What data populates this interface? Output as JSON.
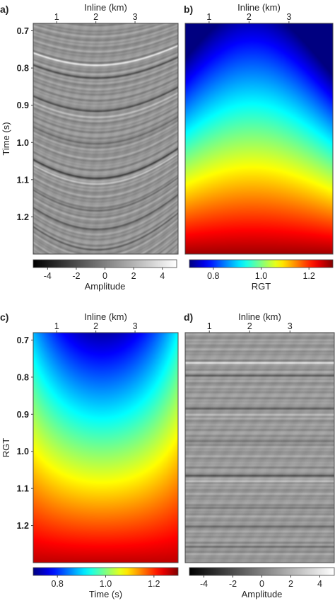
{
  "panels": [
    {
      "id": "a",
      "label": "a)",
      "type": "seismic",
      "xlabel": "Inline (km)",
      "xticks": [
        1,
        2,
        3
      ],
      "ylabel": "Time (s)",
      "yticks": [
        "0.7",
        "0.8",
        "0.9",
        "1.0",
        "1.1",
        "1.2"
      ],
      "colorbar": {
        "label": "Amplitude",
        "ticks": [
          "-4",
          "-2",
          "0",
          "2",
          "4"
        ],
        "colormap": "gray"
      }
    },
    {
      "id": "b",
      "label": "b)",
      "type": "heatmap",
      "xlabel": "Inline (km)",
      "xticks": [
        1,
        2,
        3
      ],
      "ylabel": "",
      "yticks": [],
      "colorbar": {
        "label": "RGT",
        "ticks": [
          "0.8",
          "1.0",
          "1.2"
        ],
        "colormap": "jet"
      }
    },
    {
      "id": "c",
      "label": "c)",
      "type": "heatmap",
      "xlabel": "Inline (km)",
      "xticks": [
        1,
        2,
        3
      ],
      "ylabel": "RGT",
      "yticks": [
        "0.7",
        "0.8",
        "0.9",
        "1.0",
        "1.1",
        "1.2"
      ],
      "colorbar": {
        "label": "Time (s)",
        "ticks": [
          "0.8",
          "1.0",
          "1.2"
        ],
        "colormap": "jet"
      }
    },
    {
      "id": "d",
      "label": "d)",
      "type": "seismic",
      "xlabel": "Inline (km)",
      "xticks": [
        1,
        2,
        3
      ],
      "ylabel": "",
      "yticks": [],
      "colorbar": {
        "label": "Amplitude",
        "ticks": [
          "-4",
          "-2",
          "0",
          "2",
          "4"
        ],
        "colormap": "gray"
      }
    }
  ],
  "chart_data": [
    {
      "type": "heatmap",
      "panel": "a",
      "description_of_axes": "seismic amplitude section",
      "x_range_km": [
        0.4,
        4.1
      ],
      "x_tick_values": [
        1,
        2,
        3
      ],
      "y_range_s": [
        0.68,
        1.3
      ],
      "y_tick_values": [
        0.7,
        0.8,
        0.9,
        1.0,
        1.1,
        1.2
      ],
      "value_range": [
        -5,
        5
      ],
      "colorbar_ticks": [
        -4,
        -2,
        0,
        2,
        4
      ]
    },
    {
      "type": "heatmap",
      "panel": "b",
      "x_range_km": [
        0.4,
        4.1
      ],
      "x_tick_values": [
        1,
        2,
        3
      ],
      "y_range_s": [
        0.68,
        1.3
      ],
      "value_range": [
        0.7,
        1.3
      ],
      "colorbar_ticks": [
        0.8,
        1.0,
        1.2
      ]
    },
    {
      "type": "heatmap",
      "panel": "c",
      "x_range_km": [
        0.4,
        4.1
      ],
      "x_tick_values": [
        1,
        2,
        3
      ],
      "y_range_rgt": [
        0.68,
        1.3
      ],
      "y_tick_values": [
        0.7,
        0.8,
        0.9,
        1.0,
        1.1,
        1.2
      ],
      "value_range": [
        0.7,
        1.3
      ],
      "colorbar_ticks": [
        0.8,
        1.0,
        1.2
      ]
    },
    {
      "type": "heatmap",
      "panel": "d",
      "x_range_km": [
        0.4,
        4.1
      ],
      "x_tick_values": [
        1,
        2,
        3
      ],
      "value_range": [
        -5,
        5
      ],
      "colorbar_ticks": [
        -4,
        -2,
        0,
        2,
        4
      ]
    }
  ]
}
